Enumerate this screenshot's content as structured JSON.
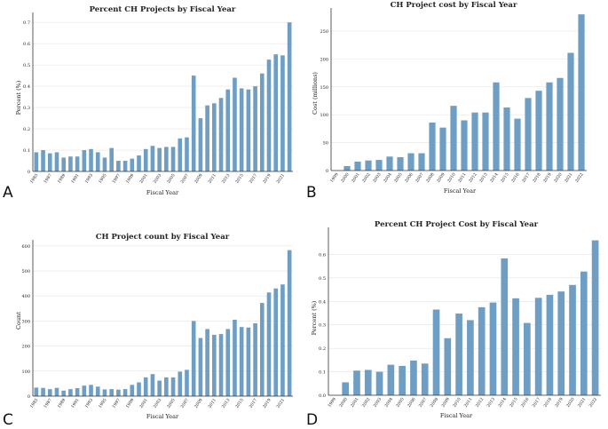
{
  "bar_color": "#6f9ec4",
  "axis_color": "#333333",
  "grid_color": "#e4e4e4",
  "chart_data": [
    {
      "id": "a",
      "panel_label": "A",
      "type": "bar",
      "title": "Percent CH Projects by Fiscal Year",
      "xlabel": "Fiscal Year",
      "ylabel": "Percent (%)",
      "ylim": [
        0,
        0.73
      ],
      "yticks": [
        0,
        0.1,
        0.2,
        0.3,
        0.4,
        0.5,
        0.6,
        0.7
      ],
      "ytick_labels": [
        "0",
        "0.1",
        "0.2",
        "0.3",
        "0.4",
        "0.5",
        "0.6",
        "0.7"
      ],
      "xtick_step": 2,
      "categories": [
        "1985",
        "1986",
        "1987",
        "1988",
        "1989",
        "1990",
        "1991",
        "1992",
        "1993",
        "1994",
        "1995",
        "1996",
        "1997",
        "1998",
        "1999",
        "2000",
        "2001",
        "2002",
        "2003",
        "2004",
        "2005",
        "2006",
        "2007",
        "2008",
        "2009",
        "2010",
        "2011",
        "2012",
        "2013",
        "2014",
        "2015",
        "2016",
        "2017",
        "2018",
        "2019",
        "2020",
        "2021",
        "2022"
      ],
      "values": [
        0.09,
        0.1,
        0.085,
        0.09,
        0.065,
        0.07,
        0.07,
        0.1,
        0.105,
        0.09,
        0.065,
        0.11,
        0.05,
        0.05,
        0.06,
        0.075,
        0.105,
        0.12,
        0.11,
        0.115,
        0.115,
        0.155,
        0.16,
        0.45,
        0.25,
        0.31,
        0.32,
        0.345,
        0.385,
        0.44,
        0.39,
        0.385,
        0.4,
        0.46,
        0.525,
        0.55,
        0.545,
        0.7
      ]
    },
    {
      "id": "b",
      "panel_label": "B",
      "type": "bar",
      "title": "CH Project cost by Fiscal Year",
      "xlabel": "Fiscal Year",
      "ylabel": "Cost (millions)",
      "ylim": [
        0,
        285
      ],
      "yticks": [
        0,
        50,
        100,
        150,
        200,
        250
      ],
      "ytick_labels": [
        "0",
        "50",
        "100",
        "150",
        "200",
        "250"
      ],
      "xtick_step": 1,
      "categories": [
        "1999",
        "2000",
        "2001",
        "2002",
        "2003",
        "2004",
        "2005",
        "2006",
        "2007",
        "2008",
        "2009",
        "2010",
        "2011",
        "2012",
        "2013",
        "2014",
        "2015",
        "2016",
        "2017",
        "2018",
        "2019",
        "2020",
        "2021",
        "2022"
      ],
      "values": [
        0,
        8,
        16,
        18,
        19,
        25,
        24,
        31,
        31,
        86,
        77,
        116,
        90,
        104,
        104,
        158,
        113,
        93,
        130,
        143,
        158,
        166,
        211,
        280
      ]
    },
    {
      "id": "c",
      "panel_label": "C",
      "type": "bar",
      "title": "CH Project count by Fiscal Year",
      "xlabel": "Fiscal Year",
      "ylabel": "Count",
      "ylim": [
        0,
        610
      ],
      "yticks": [
        0,
        100,
        200,
        300,
        400,
        500,
        600
      ],
      "ytick_labels": [
        "0",
        "100",
        "200",
        "300",
        "400",
        "500",
        "600"
      ],
      "xtick_step": 2,
      "categories": [
        "1985",
        "1986",
        "1987",
        "1988",
        "1989",
        "1990",
        "1991",
        "1992",
        "1993",
        "1994",
        "1995",
        "1996",
        "1997",
        "1998",
        "1999",
        "2000",
        "2001",
        "2002",
        "2003",
        "2004",
        "2005",
        "2006",
        "2007",
        "2008",
        "2009",
        "2010",
        "2011",
        "2012",
        "2013",
        "2014",
        "2015",
        "2016",
        "2017",
        "2018",
        "2019",
        "2020",
        "2021",
        "2022"
      ],
      "values": [
        34,
        33,
        28,
        33,
        22,
        28,
        32,
        42,
        45,
        38,
        27,
        28,
        26,
        28,
        45,
        55,
        75,
        88,
        62,
        75,
        75,
        98,
        105,
        300,
        232,
        268,
        245,
        248,
        268,
        305,
        276,
        274,
        291,
        372,
        414,
        430,
        446,
        583
      ]
    },
    {
      "id": "d",
      "panel_label": "D",
      "type": "bar",
      "title": "Percent CH Project Cost by Fiscal Year",
      "xlabel": "Fiscal Year",
      "ylabel": "Percent (%)",
      "ylim": [
        0,
        0.7
      ],
      "yticks": [
        0,
        0.1,
        0.2,
        0.3,
        0.4,
        0.5,
        0.6
      ],
      "ytick_labels": [
        "0.0",
        "0.1",
        "0.2",
        "0.3",
        "0.4",
        "0.5",
        "0.6"
      ],
      "xtick_step": 1,
      "categories": [
        "1999",
        "2000",
        "2001",
        "2002",
        "2003",
        "2004",
        "2005",
        "2006",
        "2007",
        "2008",
        "2009",
        "2010",
        "2011",
        "2012",
        "2013",
        "2014",
        "2015",
        "2016",
        "2017",
        "2018",
        "2019",
        "2020",
        "2021",
        "2022"
      ],
      "values": [
        0,
        0.055,
        0.105,
        0.108,
        0.1,
        0.13,
        0.125,
        0.148,
        0.135,
        0.365,
        0.243,
        0.348,
        0.32,
        0.375,
        0.395,
        0.583,
        0.413,
        0.308,
        0.415,
        0.428,
        0.442,
        0.47,
        0.527,
        0.66
      ]
    }
  ]
}
